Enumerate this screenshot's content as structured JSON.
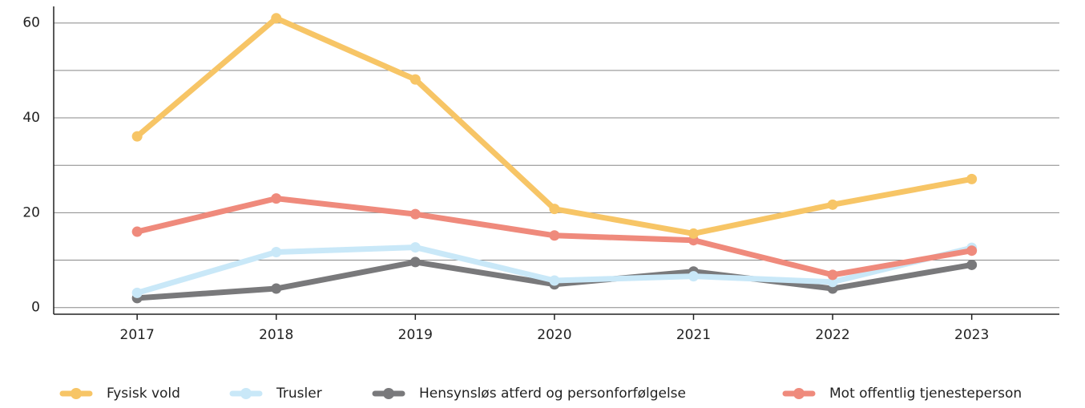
{
  "chart_data": {
    "type": "line",
    "x": [
      2017,
      2018,
      2019,
      2020,
      2021,
      2022,
      2023
    ],
    "xlim": [
      2016.4,
      2023.63
    ],
    "xticks": [
      2017,
      2018,
      2019,
      2020,
      2021,
      2022,
      2023
    ],
    "ylim": [
      -1.4,
      63.5
    ],
    "yticks": [
      0,
      20,
      40,
      60
    ],
    "y_minor_ticks": [
      10,
      30,
      50
    ],
    "grid": true,
    "legend": "bottom",
    "series": [
      {
        "name": "Fysisk vold",
        "color": "#f7c566",
        "values": [
          36.1,
          61,
          48.1,
          20.8,
          15.6,
          21.7,
          27.1
        ]
      },
      {
        "name": "Trusler",
        "color": "#c9e8f8",
        "values": [
          3.1,
          11.7,
          12.7,
          5.7,
          6.6,
          5.4,
          12.6
        ]
      },
      {
        "name": "Hensynsløs atferd og personforfølgelse",
        "color": "#79797b",
        "values": [
          2.0,
          4.0,
          9.6,
          4.9,
          7.6,
          4.0,
          9.0
        ]
      },
      {
        "name": "Mot offentlig tjenesteperson",
        "color": "#ef8a7c",
        "values": [
          16.0,
          23.0,
          19.7,
          15.2,
          14.2,
          6.9,
          12.0
        ]
      }
    ]
  }
}
